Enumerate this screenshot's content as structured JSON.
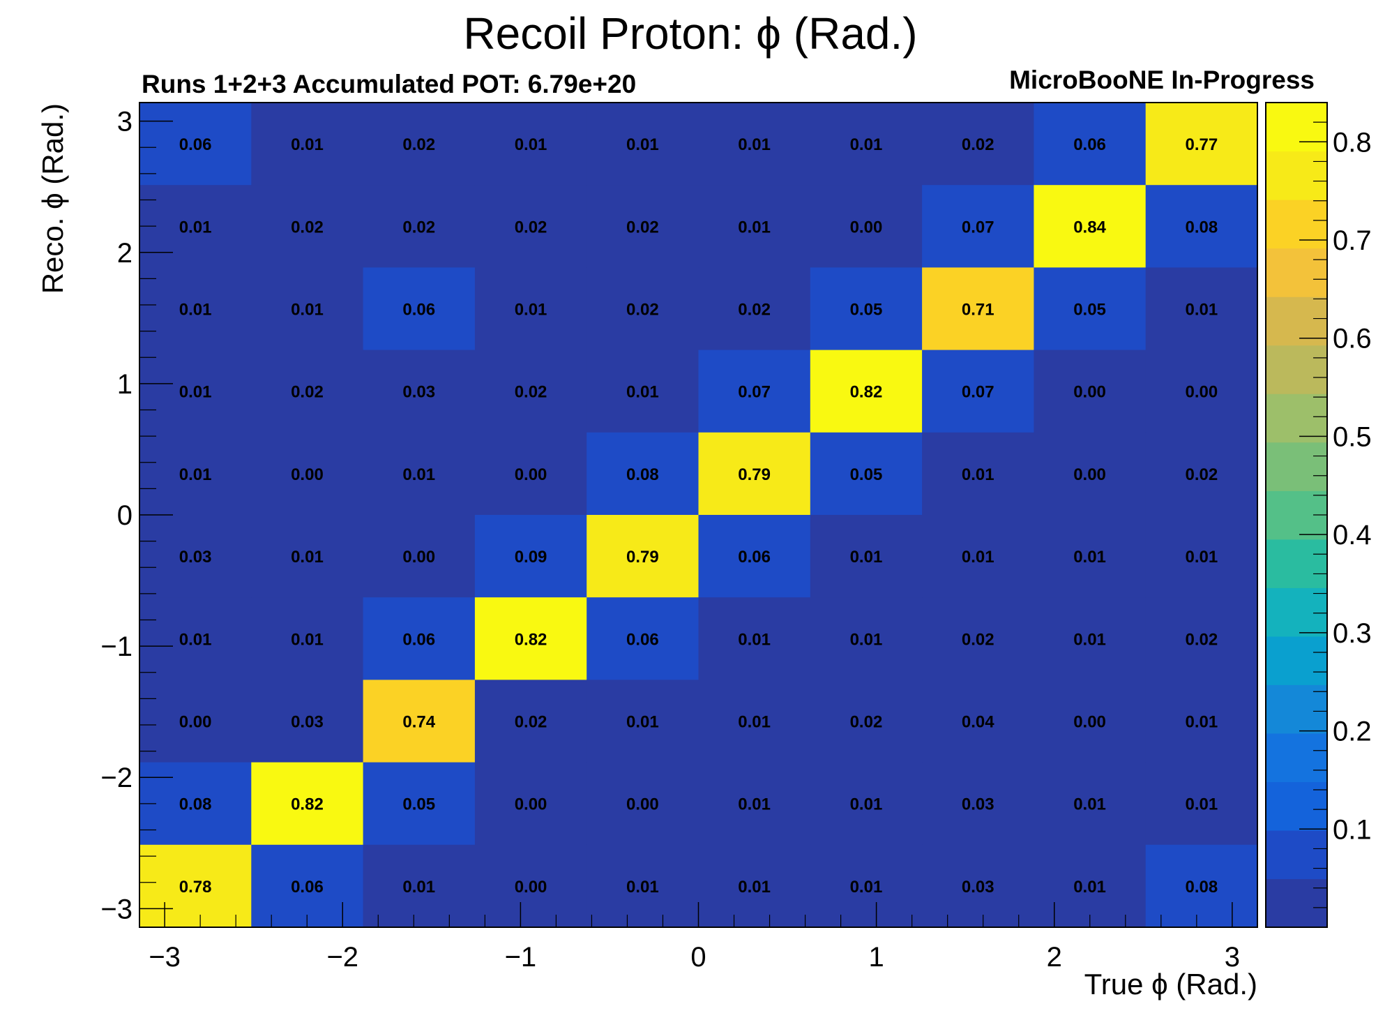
{
  "chart_data": {
    "type": "heatmap",
    "title": "Recoil Proton: ϕ (Rad.)",
    "subtitle_left": "Runs 1+2+3 Accumulated POT: 6.79e+20",
    "subtitle_right": "MicroBooNE In-Progress",
    "xlabel": "True ϕ (Rad.)",
    "ylabel": "Reco. ϕ (Rad.)",
    "xlim": [
      -3.14159,
      3.14159
    ],
    "ylim": [
      -3.14159,
      3.14159
    ],
    "zlim": [
      0,
      0.84
    ],
    "nbins_x": 10,
    "nbins_y": 10,
    "x_ticks": [
      -3,
      -2,
      -1,
      0,
      1,
      2,
      3
    ],
    "x_tick_labels": [
      "−3",
      "−2",
      "−1",
      "0",
      "1",
      "2",
      "3"
    ],
    "y_ticks": [
      -3,
      -2,
      -1,
      0,
      1,
      2,
      3
    ],
    "y_tick_labels": [
      "−3",
      "−2",
      "−1",
      "0",
      "1",
      "2",
      "3"
    ],
    "colorbar_ticks": [
      0.1,
      0.2,
      0.3,
      0.4,
      0.5,
      0.6,
      0.7,
      0.8
    ],
    "colorbar_tick_labels": [
      "0.1",
      "0.2",
      "0.3",
      "0.4",
      "0.5",
      "0.6",
      "0.7",
      "0.8"
    ],
    "values_top_to_bottom": [
      [
        "0.06",
        "0.01",
        "0.02",
        "0.01",
        "0.01",
        "0.01",
        "0.01",
        "0.02",
        "0.06",
        "0.77"
      ],
      [
        "0.01",
        "0.02",
        "0.02",
        "0.02",
        "0.02",
        "0.01",
        "0.00",
        "0.07",
        "0.84",
        "0.08"
      ],
      [
        "0.01",
        "0.01",
        "0.06",
        "0.01",
        "0.02",
        "0.02",
        "0.05",
        "0.71",
        "0.05",
        "0.01"
      ],
      [
        "0.01",
        "0.02",
        "0.03",
        "0.02",
        "0.01",
        "0.07",
        "0.82",
        "0.07",
        "0.00",
        "0.00"
      ],
      [
        "0.01",
        "0.00",
        "0.01",
        "0.00",
        "0.08",
        "0.79",
        "0.05",
        "0.01",
        "0.00",
        "0.02"
      ],
      [
        "0.03",
        "0.01",
        "0.00",
        "0.09",
        "0.79",
        "0.06",
        "0.01",
        "0.01",
        "0.01",
        "0.01"
      ],
      [
        "0.01",
        "0.01",
        "0.06",
        "0.82",
        "0.06",
        "0.01",
        "0.01",
        "0.02",
        "0.01",
        "0.02"
      ],
      [
        "0.00",
        "0.03",
        "0.74",
        "0.02",
        "0.01",
        "0.01",
        "0.02",
        "0.04",
        "0.00",
        "0.01"
      ],
      [
        "0.08",
        "0.82",
        "0.05",
        "0.00",
        "0.00",
        "0.01",
        "0.01",
        "0.03",
        "0.01",
        "0.01"
      ],
      [
        "0.78",
        "0.06",
        "0.01",
        "0.00",
        "0.01",
        "0.01",
        "0.01",
        "0.03",
        "0.01",
        "0.08"
      ]
    ],
    "grid": false,
    "colormap": [
      "#2a3ca3",
      "#1e4bc6",
      "#1463db",
      "#1473df",
      "#1488d8",
      "#0aa0cf",
      "#14b2bd",
      "#2abca0",
      "#54c088",
      "#7abf78",
      "#9dbf6a",
      "#bbb95c",
      "#d6b84e",
      "#f3c23a",
      "#fbd225",
      "#f7ea18",
      "#f9f911"
    ]
  }
}
